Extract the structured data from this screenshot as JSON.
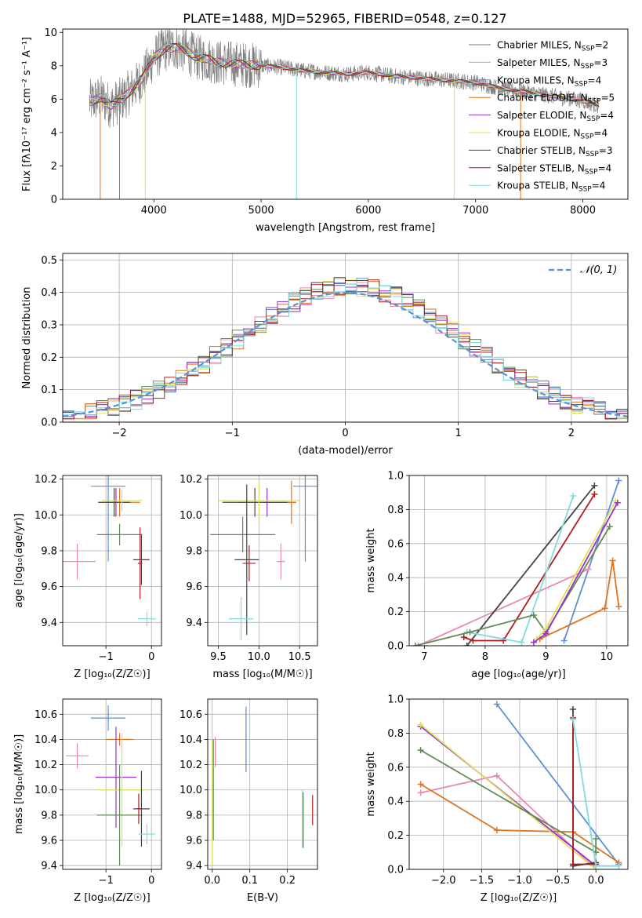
{
  "figure": {
    "title": "PLATE=1488, MJD=52965, FIBERID=0548, z=0.127"
  },
  "colors": {
    "Chabrier MILES": "#5b8fd6",
    "Salpeter MILES": "#e989b3",
    "Kroupa MILES": "#9b2fd0",
    "Chabrier ELODIE": "#e0731b",
    "Salpeter ELODIE": "#b53bc8",
    "Kroupa ELODIE": "#dfe15b",
    "Chabrier STELIB": "#444444",
    "Salpeter STELIB": "#b01c1c",
    "Kroupa STELIB": "#7fdde0",
    "green_series": "#5f8a55",
    "data": "#808080",
    "normal": "#5b8fd6"
  },
  "chart_data": [
    {
      "id": "spectrum",
      "type": "line",
      "xlabel": "wavelength [Angstrom, rest frame]",
      "ylabel": "Flux [fλ10⁻¹⁷ erg cm⁻² s⁻¹ A⁻¹]",
      "xlim": [
        3150,
        8420
      ],
      "ylim": [
        0,
        10.2
      ],
      "xticks": [
        4000,
        5000,
        6000,
        7000,
        8000
      ],
      "yticks": [
        0,
        2,
        4,
        6,
        8,
        10
      ],
      "data_series": {
        "name": "data",
        "x_range": [
          3400,
          8150
        ]
      },
      "continuum": {
        "x": [
          3400,
          3500,
          3600,
          3700,
          3800,
          3900,
          4000,
          4100,
          4200,
          4300,
          4400,
          4500,
          4600,
          4800,
          5000,
          5200,
          5400,
          5600,
          5800,
          6000,
          6200,
          6400,
          6600,
          6800,
          7000,
          7200,
          7400,
          7600,
          7800,
          8000,
          8150
        ],
        "y": [
          5.8,
          6.1,
          5.6,
          6.0,
          6.6,
          7.3,
          8.5,
          9.0,
          9.1,
          8.9,
          8.5,
          8.4,
          8.2,
          8.1,
          8.0,
          7.9,
          7.7,
          7.6,
          7.5,
          7.6,
          7.4,
          7.3,
          7.2,
          7.1,
          7.0,
          6.7,
          6.5,
          6.3,
          6.1,
          5.9,
          5.6
        ]
      },
      "legend": [
        {
          "label": "Chabrier MILES, N",
          "sub": "SSP",
          "suffix": "=2",
          "color": "#5f8a55"
        },
        {
          "label": "Salpeter MILES, N",
          "sub": "SSP",
          "suffix": "=3",
          "color": "#e989b3"
        },
        {
          "label": "Kroupa MILES, N",
          "sub": "SSP",
          "suffix": "=4",
          "color": "#5b8fd6"
        },
        {
          "label": "Chabrier ELODIE, N",
          "sub": "SSP",
          "suffix": "=5",
          "color": "#e0731b"
        },
        {
          "label": "Salpeter ELODIE, N",
          "sub": "SSP",
          "suffix": "=4",
          "color": "#9b2fd0"
        },
        {
          "label": "Kroupa ELODIE, N",
          "sub": "SSP",
          "suffix": "=4",
          "color": "#dfe15b"
        },
        {
          "label": "Chabrier STELIB, N",
          "sub": "SSP",
          "suffix": "=3",
          "color": "#444444"
        },
        {
          "label": "Salpeter STELIB, N",
          "sub": "SSP",
          "suffix": "=4",
          "color": "#b01c1c"
        },
        {
          "label": "Kroupa STELIB, N",
          "sub": "SSP",
          "suffix": "=4",
          "color": "#7fdde0"
        }
      ]
    },
    {
      "id": "residuals",
      "type": "line",
      "xlabel": "(data-model)/error",
      "ylabel": "Normed distribution",
      "xlim": [
        -2.5,
        2.5
      ],
      "ylim": [
        0,
        0.52
      ],
      "xticks": [
        -2,
        -1,
        0,
        1,
        2
      ],
      "yticks": [
        0.0,
        0.1,
        0.2,
        0.3,
        0.4,
        0.5
      ],
      "legend": [
        {
          "label": "𝒩(0, 1)"
        }
      ],
      "bin_width": 0.1,
      "series_colors": [
        "#5f8a55",
        "#e989b3",
        "#5b8fd6",
        "#e0731b",
        "#9b2fd0",
        "#dfe15b",
        "#444444",
        "#b01c1c",
        "#7fdde0"
      ]
    },
    {
      "id": "z-age",
      "type": "scatter",
      "xlabel": "Z [log₁₀(Z/Z☉)]",
      "ylabel": "age  [log₁₀(age/yr)]",
      "xlim": [
        -1.95,
        0.22
      ],
      "ylim": [
        9.27,
        10.22
      ],
      "xticks": [
        -1,
        0
      ],
      "yticks": [
        9.4,
        9.6,
        9.8,
        10.0,
        10.2
      ],
      "points": [
        {
          "x": -0.95,
          "y": 10.16,
          "xerr": 0.38,
          "yerr": 0.42,
          "color": "#5b8fd6"
        },
        {
          "x": -1.63,
          "y": 9.74,
          "xerr": 0.4,
          "yerr": 0.1,
          "color": "#e989b3"
        },
        {
          "x": -0.78,
          "y": 10.07,
          "xerr": 0.25,
          "yerr": 0.08,
          "color": "#9b2fd0"
        },
        {
          "x": -0.7,
          "y": 10.07,
          "xerr": 0.45,
          "yerr": 0.08,
          "color": "#e0731b"
        },
        {
          "x": -0.82,
          "y": 10.07,
          "xerr": 0.35,
          "yerr": 0.08,
          "color": "#444444"
        },
        {
          "x": -0.65,
          "y": 10.08,
          "xerr": 0.45,
          "yerr": 0.06,
          "color": "#dfe15b"
        },
        {
          "x": -0.7,
          "y": 9.89,
          "xerr": 0.5,
          "yerr": 0.06,
          "color": "#5f8a55"
        },
        {
          "x": -0.22,
          "y": 9.75,
          "xerr": 0.18,
          "yerr": 0.14,
          "color": "#444444"
        },
        {
          "x": -0.25,
          "y": 9.73,
          "xerr": 0.05,
          "yerr": 0.2,
          "color": "#b01c1c"
        },
        {
          "x": -0.1,
          "y": 9.42,
          "xerr": 0.2,
          "yerr": 0.04,
          "color": "#7fdde0"
        }
      ]
    },
    {
      "id": "mass-age",
      "type": "scatter",
      "xlabel": "mass [log₁₀(M/M☉)]",
      "ylabel": "",
      "xlim": [
        9.37,
        10.72
      ],
      "ylim": [
        9.27,
        10.22
      ],
      "xticks": [
        9.5,
        10.0,
        10.5
      ],
      "yticks": [
        9.4,
        9.6,
        9.8,
        10.0,
        10.2
      ],
      "points": [
        {
          "x": 10.57,
          "y": 10.16,
          "xerr": 0.15,
          "yerr": 0.42,
          "color": "#5b8fd6"
        },
        {
          "x": 10.27,
          "y": 9.74,
          "xerr": 0.05,
          "yerr": 0.1,
          "color": "#e989b3"
        },
        {
          "x": 10.1,
          "y": 10.07,
          "xerr": 0.35,
          "yerr": 0.08,
          "color": "#9b2fd0"
        },
        {
          "x": 10.4,
          "y": 10.07,
          "xerr": 0.06,
          "yerr": 0.12,
          "color": "#e0731b"
        },
        {
          "x": 9.95,
          "y": 10.07,
          "xerr": 0.4,
          "yerr": 0.08,
          "color": "#444444"
        },
        {
          "x": 10.0,
          "y": 10.08,
          "xerr": 0.5,
          "yerr": 0.1,
          "color": "#dfe15b"
        },
        {
          "x": 9.8,
          "y": 9.89,
          "xerr": 0.4,
          "yerr": 0.1,
          "color": "#5f8a55"
        },
        {
          "x": 9.85,
          "y": 9.75,
          "xerr": 0.15,
          "yerr": 0.42,
          "color": "#444444"
        },
        {
          "x": 9.88,
          "y": 9.73,
          "xerr": 0.08,
          "yerr": 0.1,
          "color": "#b01c1c"
        },
        {
          "x": 9.78,
          "y": 9.42,
          "xerr": 0.15,
          "yerr": 0.12,
          "color": "#7fdde0"
        }
      ]
    },
    {
      "id": "age-weight",
      "type": "line",
      "xlabel": "age  [log₁₀(age/yr)]",
      "ylabel": "mass weight",
      "xlim": [
        6.75,
        10.35
      ],
      "ylim": [
        0,
        1.0
      ],
      "xticks": [
        7,
        8,
        9,
        10
      ],
      "yticks": [
        0.0,
        0.2,
        0.4,
        0.6,
        0.8,
        1.0
      ],
      "series": [
        {
          "color": "#5b8fd6",
          "x": [
            9.3,
            10.2
          ],
          "y": [
            0.03,
            0.97
          ]
        },
        {
          "color": "#e989b3",
          "x": [
            6.9,
            9.7
          ],
          "y": [
            0.0,
            0.45
          ]
        },
        {
          "color": "#e0731b",
          "x": [
            8.9,
            9.97,
            10.1,
            10.2
          ],
          "y": [
            0.04,
            0.22,
            0.5,
            0.23
          ]
        },
        {
          "color": "#444444",
          "x": [
            7.7,
            9.8
          ],
          "y": [
            0.0,
            0.94
          ]
        },
        {
          "color": "#b01c1c",
          "x": [
            7.65,
            7.8,
            8.3,
            9.8
          ],
          "y": [
            0.05,
            0.03,
            0.03,
            0.89
          ]
        },
        {
          "color": "#7fdde0",
          "x": [
            7.7,
            8.6,
            9.45
          ],
          "y": [
            0.08,
            0.02,
            0.88
          ]
        },
        {
          "color": "#5f8a55",
          "x": [
            6.85,
            7.75,
            8.8,
            9.0,
            10.05
          ],
          "y": [
            0.0,
            0.08,
            0.18,
            0.08,
            0.7
          ]
        },
        {
          "color": "#dfe15b",
          "x": [
            8.85,
            9.0,
            10.15
          ],
          "y": [
            0.04,
            0.1,
            0.85
          ]
        },
        {
          "color": "#9b2fd0",
          "x": [
            8.8,
            9.0,
            10.18
          ],
          "y": [
            0.02,
            0.07,
            0.84
          ]
        }
      ]
    },
    {
      "id": "z-mass",
      "type": "scatter",
      "xlabel": "Z [log₁₀(Z/Z☉)]",
      "ylabel": "mass [log₁₀(M/M☉)]",
      "xlim": [
        -1.95,
        0.22
      ],
      "ylim": [
        9.37,
        10.72
      ],
      "xticks": [
        -1,
        0
      ],
      "yticks": [
        9.4,
        9.6,
        9.8,
        10.0,
        10.2,
        10.4,
        10.6
      ],
      "points": [
        {
          "x": -0.95,
          "y": 10.57,
          "xerr": 0.38,
          "yerr": 0.1,
          "color": "#5b8fd6"
        },
        {
          "x": -1.63,
          "y": 10.27,
          "xerr": 0.25,
          "yerr": 0.1,
          "color": "#e989b3"
        },
        {
          "x": -0.7,
          "y": 10.4,
          "xerr": 0.3,
          "yerr": 0.05,
          "color": "#e0731b"
        },
        {
          "x": -0.78,
          "y": 10.1,
          "xerr": 0.45,
          "yerr": 0.4,
          "color": "#9b2fd0"
        },
        {
          "x": -0.65,
          "y": 10.0,
          "xerr": 0.55,
          "yerr": 0.45,
          "color": "#dfe15b"
        },
        {
          "x": -0.7,
          "y": 9.8,
          "xerr": 0.5,
          "yerr": 0.4,
          "color": "#5f8a55"
        },
        {
          "x": -0.22,
          "y": 9.85,
          "xerr": 0.18,
          "yerr": 0.3,
          "color": "#444444"
        },
        {
          "x": -0.28,
          "y": 9.85,
          "xerr": 0.05,
          "yerr": 0.12,
          "color": "#b01c1c"
        },
        {
          "x": -0.1,
          "y": 9.65,
          "xerr": 0.18,
          "yerr": 0.08,
          "color": "#7fdde0"
        }
      ]
    },
    {
      "id": "ebv-mass",
      "type": "scatter",
      "xlabel": "E(B-V)",
      "ylabel": "",
      "xlim": [
        -0.012,
        0.28
      ],
      "ylim": [
        9.37,
        10.72
      ],
      "xticks": [
        0.0,
        0.1,
        0.2
      ],
      "yticks": [
        9.4,
        9.6,
        9.8,
        10.0,
        10.2,
        10.4,
        10.6
      ],
      "points": [
        {
          "x": 0.09,
          "y": 10.4,
          "xerr": 0,
          "yerr": 0.26,
          "color": "#5b8fd6"
        },
        {
          "x": 0.008,
          "y": 10.3,
          "xerr": 0,
          "yerr": 0.12,
          "color": "#e989b3"
        },
        {
          "x": 0.0,
          "y": 9.9,
          "xerr": 0,
          "yerr": 0.5,
          "color": "#dfe15b"
        },
        {
          "x": 0.003,
          "y": 10.0,
          "xerr": 0,
          "yerr": 0.4,
          "color": "#5f8a55"
        },
        {
          "x": 0.24,
          "y": 9.77,
          "xerr": 0,
          "yerr": 0.23,
          "color": "#7fdde0"
        },
        {
          "x": 0.242,
          "y": 9.76,
          "xerr": 0,
          "yerr": 0.22,
          "color": "#5f8a55"
        },
        {
          "x": 0.267,
          "y": 9.84,
          "xerr": 0,
          "yerr": 0.12,
          "color": "#b01c1c"
        }
      ]
    },
    {
      "id": "z-weight",
      "type": "line",
      "xlabel": "Z [log₁₀(Z/Z☉)]",
      "ylabel": "mass weight",
      "xlim": [
        -2.45,
        0.42
      ],
      "ylim": [
        0,
        1.0
      ],
      "xticks": [
        -2.0,
        -1.5,
        -1.0,
        -0.5,
        0.0
      ],
      "yticks": [
        0.0,
        0.2,
        0.4,
        0.6,
        0.8,
        1.0
      ],
      "series": [
        {
          "color": "#5b8fd6",
          "x": [
            -1.3,
            0.3
          ],
          "y": [
            0.97,
            0.03
          ]
        },
        {
          "color": "#e989b3",
          "x": [
            -2.3,
            -1.3,
            0.0
          ],
          "y": [
            0.45,
            0.55,
            0.0
          ]
        },
        {
          "color": "#e0731b",
          "x": [
            -2.3,
            -1.3,
            -0.3,
            0.3
          ],
          "y": [
            0.5,
            0.23,
            0.22,
            0.04
          ]
        },
        {
          "color": "#9b2fd0",
          "x": [
            -2.3,
            0.0
          ],
          "y": [
            0.84,
            0.02
          ]
        },
        {
          "color": "#dfe15b",
          "x": [
            -2.3,
            0.0
          ],
          "y": [
            0.85,
            0.0
          ]
        },
        {
          "color": "#5f8a55",
          "x": [
            -2.3,
            0.0,
            0.0
          ],
          "y": [
            0.7,
            0.1,
            0.18
          ]
        },
        {
          "color": "#444444",
          "x": [
            -0.3,
            -0.3,
            0.0
          ],
          "y": [
            0.94,
            0.02,
            0.04
          ]
        },
        {
          "color": "#b01c1c",
          "x": [
            -0.3,
            -0.3,
            0.0
          ],
          "y": [
            0.89,
            0.03,
            0.03
          ]
        },
        {
          "color": "#7fdde0",
          "x": [
            -0.3,
            0.0,
            0.3
          ],
          "y": [
            0.88,
            0.02,
            0.02
          ]
        }
      ]
    }
  ]
}
